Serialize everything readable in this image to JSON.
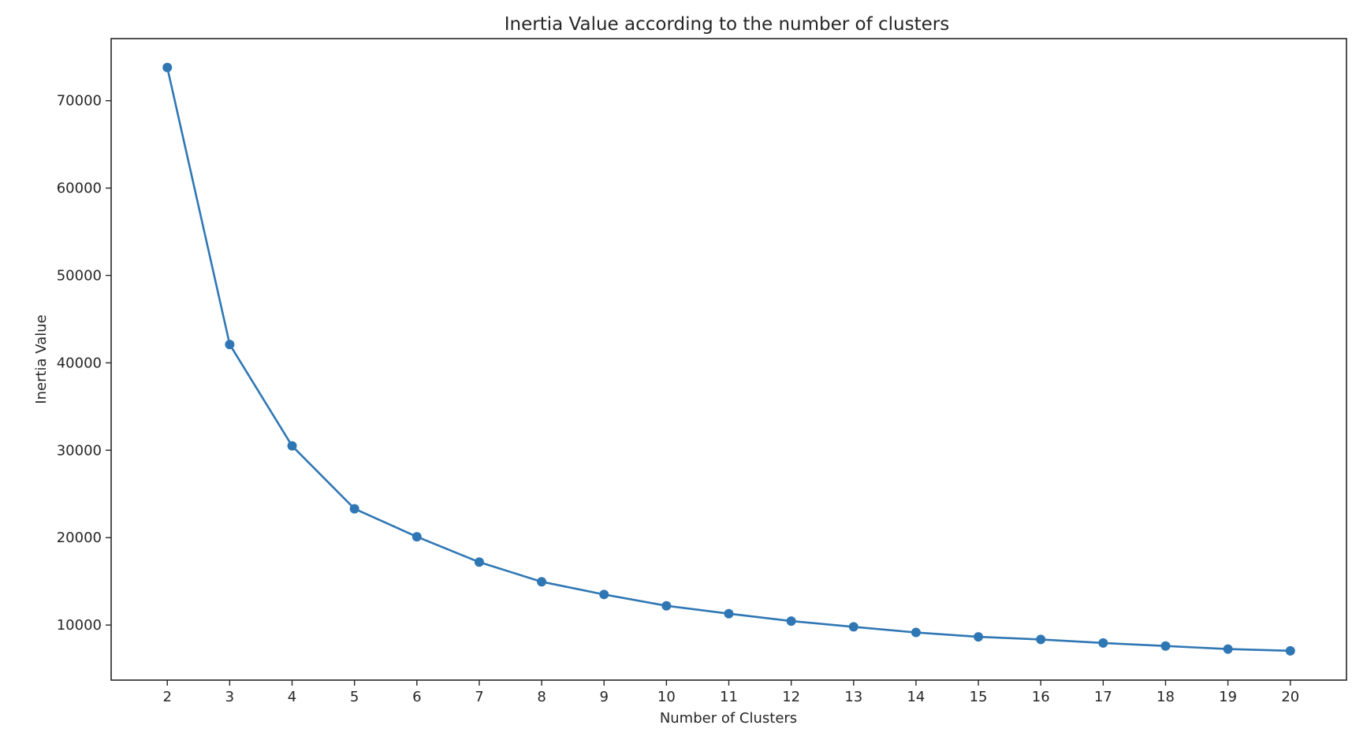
{
  "chart_data": {
    "type": "line",
    "title": "Inertia Value according to the number of clusters",
    "xlabel": "Number of Clusters",
    "ylabel": "Inertia Value",
    "x": [
      2,
      3,
      4,
      5,
      6,
      7,
      8,
      9,
      10,
      11,
      12,
      13,
      14,
      15,
      16,
      17,
      18,
      19,
      20
    ],
    "series": [
      {
        "values": [
          73800,
          42100,
          30500,
          23300,
          20100,
          17200,
          14950,
          13500,
          12200,
          11300,
          10450,
          9800,
          9150,
          8650,
          8350,
          7950,
          7600,
          7250,
          7050
        ]
      }
    ],
    "xticks": [
      2,
      3,
      4,
      5,
      6,
      7,
      8,
      9,
      10,
      11,
      12,
      13,
      14,
      15,
      16,
      17,
      18,
      19,
      20
    ],
    "yticks": [
      10000,
      20000,
      30000,
      40000,
      50000,
      60000,
      70000
    ],
    "xlim": [
      1.1,
      20.9
    ],
    "ylim": [
      3700,
      77100
    ],
    "grid": false,
    "legend": "none",
    "colors": {
      "line": "#2f77b4",
      "marker": "#2f77b4",
      "axes": "#262626"
    }
  }
}
